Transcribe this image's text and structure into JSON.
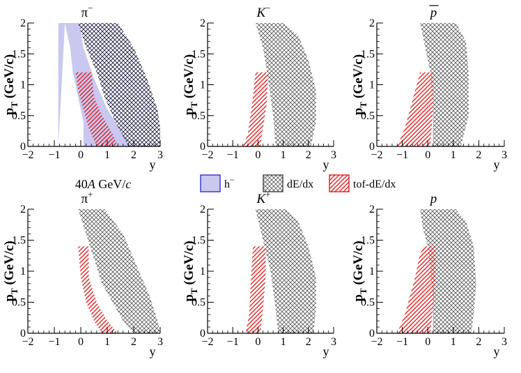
{
  "chart_data": {
    "type": "acceptance-map",
    "energy_label": {
      "prefix": "40",
      "italic": "A",
      "suffix": " GeV/",
      "italic2": "c"
    },
    "legend": [
      {
        "key": "h-",
        "label": "h",
        "sup": "−",
        "style": "fill",
        "color": "#c8c8f0",
        "stroke": "#3030d0"
      },
      {
        "key": "dEdx",
        "label": "dE/dx",
        "style": "crosshatch",
        "color": "#555555"
      },
      {
        "key": "tof",
        "label": "tof-dE/dx",
        "style": "diag",
        "color": "#e02020"
      }
    ],
    "x_axis": {
      "label": "y",
      "range": [
        -2,
        3
      ],
      "ticks": [
        -2,
        -1,
        0,
        1,
        2,
        3
      ]
    },
    "y_axis": {
      "label": "p",
      "sub": "T",
      "unit": " (GeV/c)",
      "range": [
        0,
        2
      ],
      "ticks": [
        "0",
        "0.5",
        "1",
        "1.5",
        "2"
      ]
    },
    "panels": [
      {
        "title": "π",
        "title_sup": "−",
        "italic": false,
        "overline": false,
        "hminus": [
          [
            -0.85,
            0
          ],
          [
            -0.85,
            2
          ],
          [
            -0.05,
            2
          ],
          [
            0.1,
            1.6
          ],
          [
            0.5,
            1.1
          ],
          [
            1.0,
            0.6
          ],
          [
            1.6,
            0.2
          ],
          [
            1.9,
            0
          ],
          [
            0.1,
            0
          ],
          [
            0.1,
            0.4
          ],
          [
            -0.1,
            0.8
          ],
          [
            -0.3,
            1.2
          ],
          [
            -0.4,
            1.6
          ],
          [
            -0.6,
            2
          ]
        ],
        "dedx": [
          [
            -0.1,
            2
          ],
          [
            1.4,
            2
          ],
          [
            2.0,
            1.6
          ],
          [
            2.5,
            1.1
          ],
          [
            2.9,
            0.6
          ],
          [
            3.0,
            0.3
          ],
          [
            3.0,
            0
          ],
          [
            1.8,
            0
          ],
          [
            1.3,
            0.4
          ],
          [
            0.9,
            0.8
          ],
          [
            0.6,
            1.2
          ],
          [
            0.2,
            1.6
          ]
        ],
        "tof": [
          [
            -0.2,
            1.2
          ],
          [
            0.4,
            1.2
          ],
          [
            0.5,
            0.8
          ],
          [
            0.8,
            0.5
          ],
          [
            1.2,
            0.2
          ],
          [
            1.4,
            0
          ],
          [
            0.6,
            0
          ],
          [
            0.3,
            0.3
          ],
          [
            0.1,
            0.6
          ],
          [
            -0.1,
            0.9
          ]
        ]
      },
      {
        "title": "K",
        "title_sup": "−",
        "italic": true,
        "overline": false,
        "dedx": [
          [
            -0.1,
            2
          ],
          [
            1.0,
            2
          ],
          [
            1.6,
            1.8
          ],
          [
            2.0,
            1.4
          ],
          [
            2.3,
            0.9
          ],
          [
            2.3,
            0.4
          ],
          [
            2.1,
            0
          ],
          [
            0.7,
            0
          ],
          [
            0.6,
            0.5
          ],
          [
            0.4,
            1.1
          ],
          [
            0.2,
            1.6
          ]
        ],
        "tof": [
          [
            -0.1,
            1.2
          ],
          [
            0.4,
            1.2
          ],
          [
            0.35,
            0.7
          ],
          [
            0.2,
            0.3
          ],
          [
            0.1,
            0
          ],
          [
            -0.6,
            0
          ],
          [
            -0.4,
            0.2
          ],
          [
            -0.3,
            0.5
          ],
          [
            -0.2,
            0.8
          ]
        ]
      },
      {
        "title": "p",
        "title_sup": "",
        "italic": true,
        "overline": true,
        "dedx": [
          [
            -0.3,
            2
          ],
          [
            1.1,
            2
          ],
          [
            1.5,
            1.7
          ],
          [
            1.6,
            1.2
          ],
          [
            1.6,
            0.5
          ],
          [
            1.3,
            0
          ],
          [
            0.2,
            0
          ],
          [
            0.2,
            0.6
          ],
          [
            0.1,
            1.2
          ],
          [
            -0.1,
            1.6
          ]
        ],
        "tof": [
          [
            -0.3,
            1.2
          ],
          [
            0.2,
            1.2
          ],
          [
            0.2,
            0.6
          ],
          [
            0.1,
            0
          ],
          [
            -1.2,
            0
          ],
          [
            -0.9,
            0.3
          ],
          [
            -0.7,
            0.6
          ],
          [
            -0.5,
            0.9
          ]
        ]
      },
      {
        "title": "π",
        "title_sup": "+",
        "italic": false,
        "overline": false,
        "dedx": [
          [
            -0.1,
            2
          ],
          [
            0.9,
            2
          ],
          [
            1.6,
            1.6
          ],
          [
            2.1,
            1.1
          ],
          [
            2.6,
            0.6
          ],
          [
            2.9,
            0.2
          ],
          [
            3.0,
            0
          ],
          [
            2.0,
            0
          ],
          [
            1.6,
            0.2
          ],
          [
            1.2,
            0.5
          ],
          [
            0.8,
            0.8
          ],
          [
            0.5,
            1.2
          ],
          [
            0.2,
            1.6
          ]
        ],
        "tof": [
          [
            -0.1,
            1.4
          ],
          [
            0.3,
            1.4
          ],
          [
            0.3,
            0.9
          ],
          [
            0.6,
            0.5
          ],
          [
            1.0,
            0.2
          ],
          [
            1.4,
            0
          ],
          [
            0.8,
            0
          ],
          [
            0.5,
            0.2
          ],
          [
            0.2,
            0.5
          ],
          [
            0.0,
            0.9
          ]
        ]
      },
      {
        "title": "K",
        "title_sup": "+",
        "italic": true,
        "overline": false,
        "dedx": [
          [
            -0.1,
            2
          ],
          [
            1.1,
            2
          ],
          [
            1.6,
            1.8
          ],
          [
            2.0,
            1.4
          ],
          [
            2.3,
            0.9
          ],
          [
            2.3,
            0.4
          ],
          [
            2.2,
            0
          ],
          [
            0.8,
            0
          ],
          [
            0.7,
            0.4
          ],
          [
            0.5,
            1.0
          ],
          [
            0.2,
            1.5
          ]
        ],
        "tof": [
          [
            -0.2,
            1.4
          ],
          [
            0.3,
            1.4
          ],
          [
            0.3,
            0.9
          ],
          [
            0.2,
            0.4
          ],
          [
            0.1,
            0
          ],
          [
            -0.5,
            0
          ],
          [
            -0.35,
            0.3
          ],
          [
            -0.3,
            0.7
          ],
          [
            -0.25,
            1.1
          ]
        ]
      },
      {
        "title": "p",
        "title_sup": "",
        "italic": true,
        "overline": false,
        "dedx": [
          [
            -0.3,
            2
          ],
          [
            1.1,
            2
          ],
          [
            1.5,
            1.8
          ],
          [
            1.8,
            1.4
          ],
          [
            1.9,
            0.8
          ],
          [
            1.8,
            0.3
          ],
          [
            1.7,
            0
          ],
          [
            0.2,
            0
          ],
          [
            0.2,
            0.5
          ],
          [
            0.1,
            1.0
          ],
          [
            0.0,
            1.4
          ],
          [
            -0.2,
            1.7
          ]
        ],
        "tof": [
          [
            -0.2,
            1.4
          ],
          [
            0.3,
            1.4
          ],
          [
            0.3,
            0.9
          ],
          [
            0.2,
            0.4
          ],
          [
            0.1,
            0
          ],
          [
            -1.2,
            0
          ],
          [
            -0.9,
            0.3
          ],
          [
            -0.7,
            0.6
          ],
          [
            -0.5,
            0.9
          ],
          [
            -0.35,
            1.2
          ]
        ]
      }
    ]
  }
}
